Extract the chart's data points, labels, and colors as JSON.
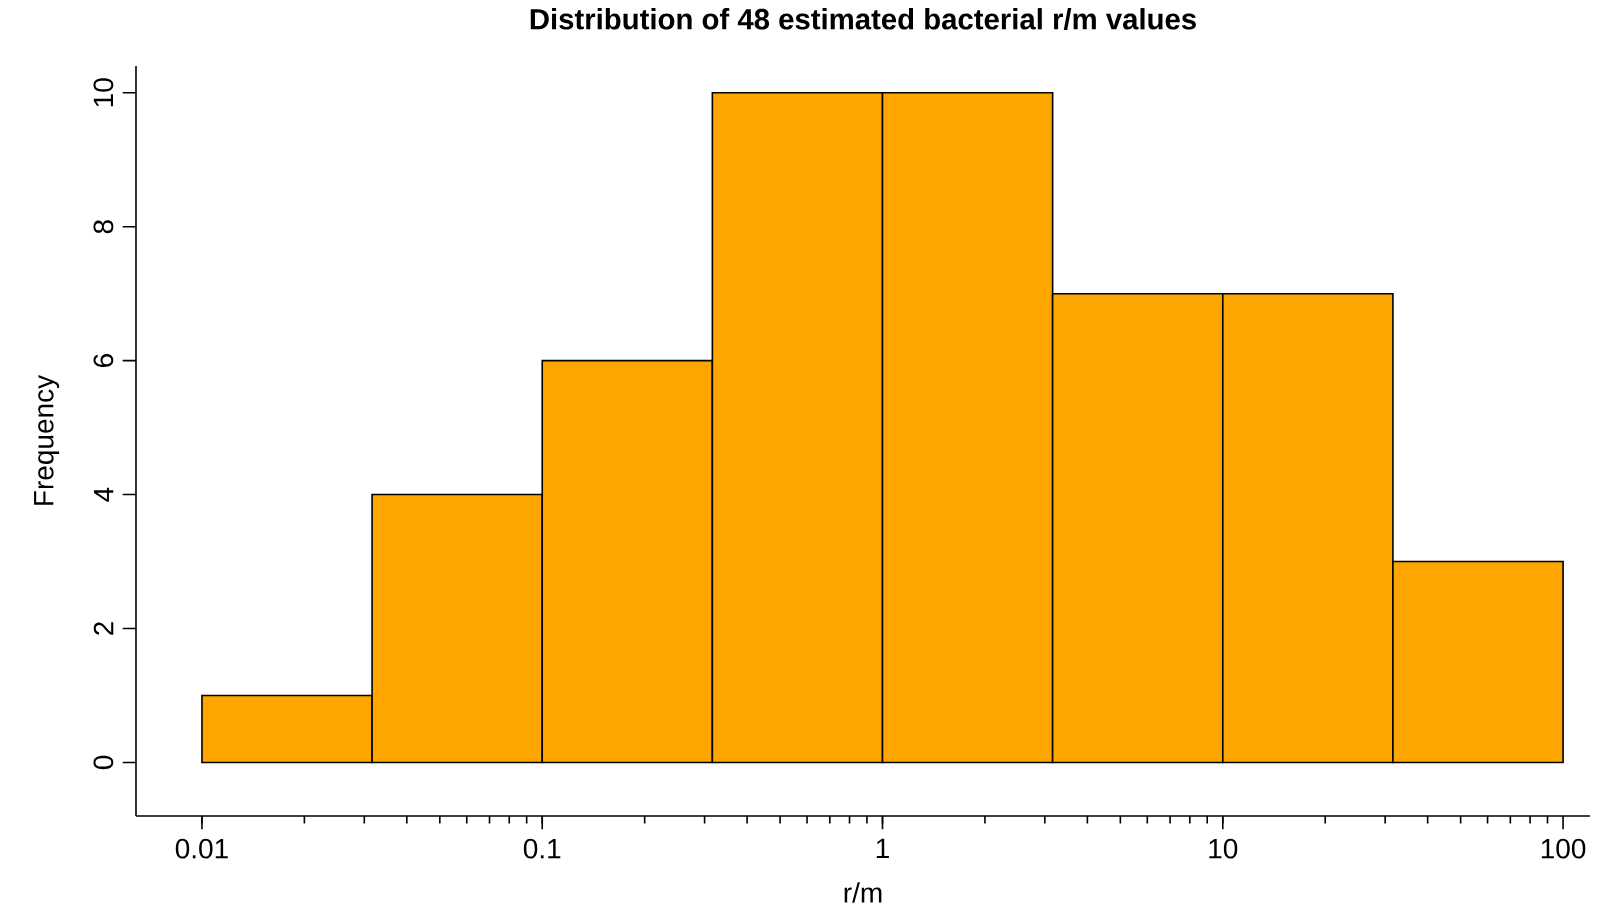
{
  "chart_data": {
    "type": "histogram",
    "title": "Distribution of 48 estimated bacterial r/m values",
    "xlabel": "r/m",
    "ylabel": "Frequency",
    "bins": [
      0.01,
      0.03162,
      0.1,
      0.3162,
      1,
      3.162,
      10,
      31.62,
      100
    ],
    "values": [
      1,
      4,
      6,
      10,
      10,
      7,
      7,
      3
    ],
    "color": "#ffa500",
    "log": "x",
    "xlim": [
      0.0064,
      120
    ],
    "ylim": [
      -0.8,
      10.4
    ],
    "xticks": [
      0.01,
      0.1,
      1,
      10,
      100
    ],
    "yticks": [
      0,
      2,
      4,
      6,
      8,
      10
    ]
  }
}
